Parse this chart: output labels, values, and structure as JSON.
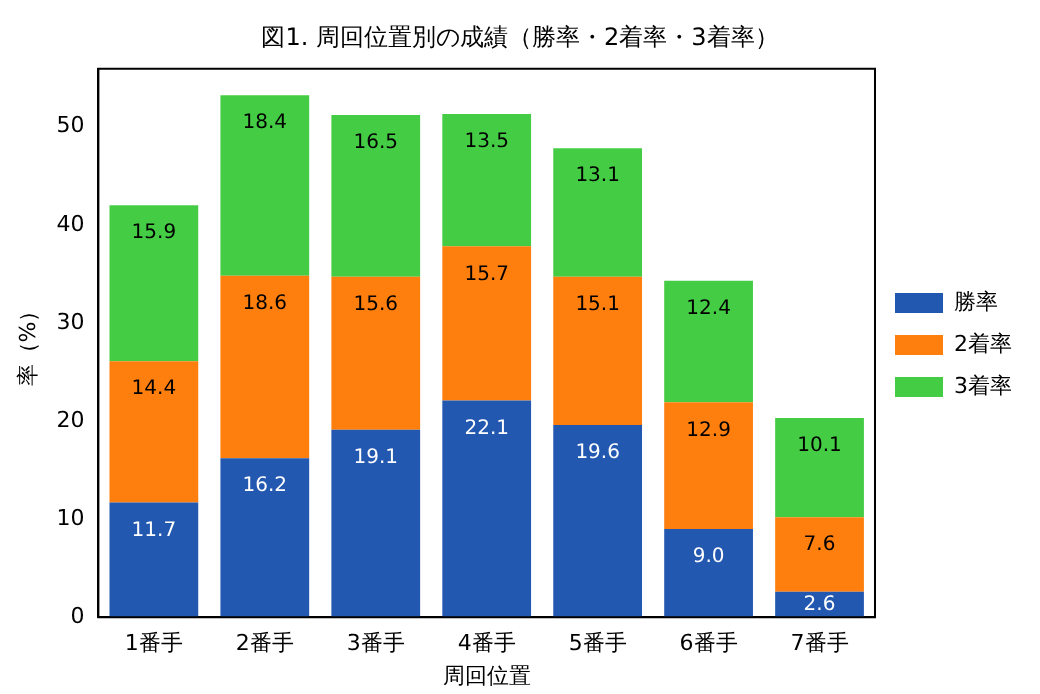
{
  "chart_data": {
    "type": "bar",
    "title": "図1. 周回位置別の成績（勝率・2着率・3着率）",
    "xlabel": "周回位置",
    "ylabel": "率（%）",
    "categories": [
      "1番手",
      "2番手",
      "3番手",
      "4番手",
      "5番手",
      "6番手",
      "7番手"
    ],
    "stacked": true,
    "ylim": [
      0,
      55.9
    ],
    "yticks": [
      0,
      10,
      20,
      30,
      40,
      50
    ],
    "grid": false,
    "legend": "right",
    "series": [
      {
        "name": "勝率",
        "color": "#2258b0",
        "values": [
          11.7,
          16.2,
          19.1,
          22.1,
          19.6,
          9.0,
          2.6
        ],
        "value_labels": [
          "11.7",
          "16.2",
          "19.1",
          "22.1",
          "19.6",
          "9.0",
          "2.6"
        ]
      },
      {
        "name": "2着率",
        "color": "#ff7f0e",
        "values": [
          14.4,
          18.6,
          15.6,
          15.7,
          15.1,
          12.9,
          7.6
        ],
        "value_labels": [
          "14.4",
          "18.6",
          "15.6",
          "15.7",
          "15.1",
          "12.9",
          "7.6"
        ]
      },
      {
        "name": "3着率",
        "color": "#44cc44",
        "values": [
          15.9,
          18.4,
          16.5,
          13.5,
          13.1,
          12.4,
          10.1
        ],
        "value_labels": [
          "15.9",
          "18.4",
          "16.5",
          "13.5",
          "13.1",
          "12.4",
          "10.1"
        ]
      }
    ]
  }
}
